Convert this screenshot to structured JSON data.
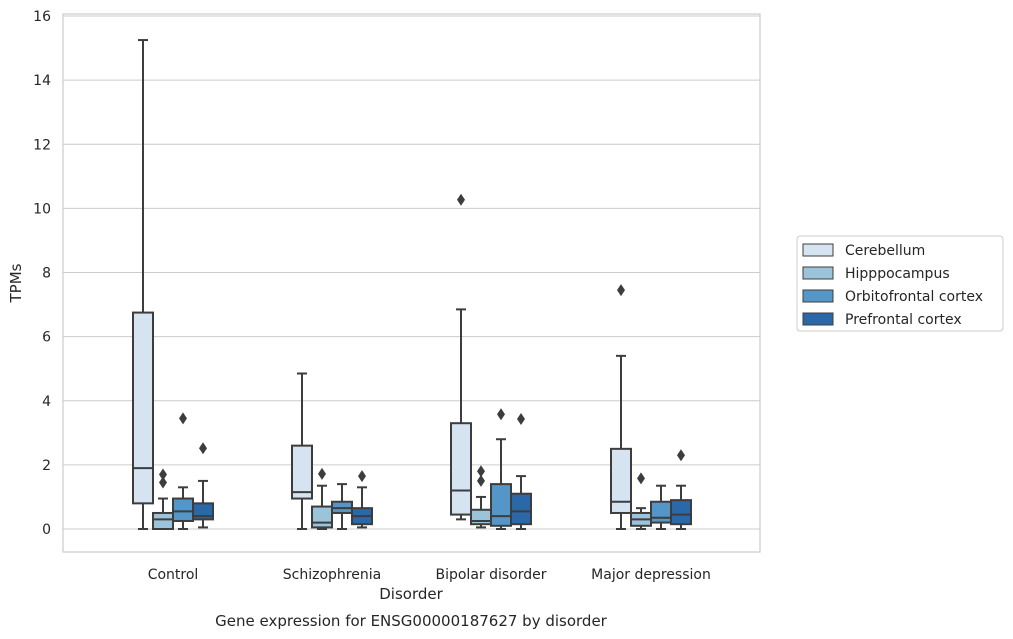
{
  "chart_data": {
    "type": "boxplot",
    "title": "Gene expression for ENSG00000187627 by disorder",
    "xlabel": "Disorder",
    "ylabel": "TPMs",
    "ylim": [
      -0.7,
      16.1
    ],
    "yticks": [
      0,
      2,
      4,
      6,
      8,
      10,
      12,
      14,
      16
    ],
    "grid": true,
    "legend_position": "right",
    "categories": [
      "Control",
      "Schizophrenia",
      "Bipolar disorder",
      "Major depression"
    ],
    "series": [
      {
        "name": "Cerebellum",
        "color": "#d6e3f1",
        "boxes": [
          {
            "whisker_low": 0.0,
            "q1": 0.8,
            "median": 1.9,
            "q3": 6.75,
            "whisker_high": 15.25,
            "outliers": []
          },
          {
            "whisker_low": 0.0,
            "q1": 0.95,
            "median": 1.15,
            "q3": 2.6,
            "whisker_high": 4.85,
            "outliers": []
          },
          {
            "whisker_low": 0.3,
            "q1": 0.45,
            "median": 1.2,
            "q3": 3.3,
            "whisker_high": 6.85,
            "outliers": [
              10.27
            ]
          },
          {
            "whisker_low": 0.0,
            "q1": 0.5,
            "median": 0.85,
            "q3": 2.5,
            "whisker_high": 5.4,
            "outliers": [
              7.45
            ]
          }
        ]
      },
      {
        "name": "Hipppocampus",
        "color": "#9bc4db",
        "boxes": [
          {
            "whisker_low": 0.0,
            "q1": 0.0,
            "median": 0.3,
            "q3": 0.5,
            "whisker_high": 0.95,
            "outliers": [
              1.45,
              1.7
            ]
          },
          {
            "whisker_low": 0.0,
            "q1": 0.05,
            "median": 0.2,
            "q3": 0.7,
            "whisker_high": 1.35,
            "outliers": [
              1.72
            ]
          },
          {
            "whisker_low": 0.05,
            "q1": 0.15,
            "median": 0.25,
            "q3": 0.6,
            "whisker_high": 1.0,
            "outliers": [
              1.5,
              1.8
            ]
          },
          {
            "whisker_low": 0.0,
            "q1": 0.1,
            "median": 0.3,
            "q3": 0.5,
            "whisker_high": 0.65,
            "outliers": [
              1.58
            ]
          }
        ]
      },
      {
        "name": "Orbitofrontal cortex",
        "color": "#5596c8",
        "boxes": [
          {
            "whisker_low": 0.0,
            "q1": 0.25,
            "median": 0.55,
            "q3": 0.95,
            "whisker_high": 1.3,
            "outliers": [
              3.45
            ]
          },
          {
            "whisker_low": 0.0,
            "q1": 0.5,
            "median": 0.65,
            "q3": 0.85,
            "whisker_high": 1.4,
            "outliers": []
          },
          {
            "whisker_low": 0.0,
            "q1": 0.1,
            "median": 0.4,
            "q3": 1.4,
            "whisker_high": 2.8,
            "outliers": [
              3.58
            ]
          },
          {
            "whisker_low": 0.0,
            "q1": 0.2,
            "median": 0.35,
            "q3": 0.85,
            "whisker_high": 1.35,
            "outliers": []
          }
        ]
      },
      {
        "name": "Prefrontal cortex",
        "color": "#2a68a9",
        "boxes": [
          {
            "whisker_low": 0.05,
            "q1": 0.3,
            "median": 0.4,
            "q3": 0.8,
            "whisker_high": 1.5,
            "outliers": [
              2.52
            ]
          },
          {
            "whisker_low": 0.05,
            "q1": 0.15,
            "median": 0.4,
            "q3": 0.65,
            "whisker_high": 1.3,
            "outliers": [
              1.65
            ]
          },
          {
            "whisker_low": 0.0,
            "q1": 0.15,
            "median": 0.55,
            "q3": 1.1,
            "whisker_high": 1.65,
            "outliers": [
              3.43
            ]
          },
          {
            "whisker_low": 0.0,
            "q1": 0.15,
            "median": 0.45,
            "q3": 0.9,
            "whisker_high": 1.35,
            "outliers": [
              2.3
            ]
          }
        ]
      }
    ]
  }
}
